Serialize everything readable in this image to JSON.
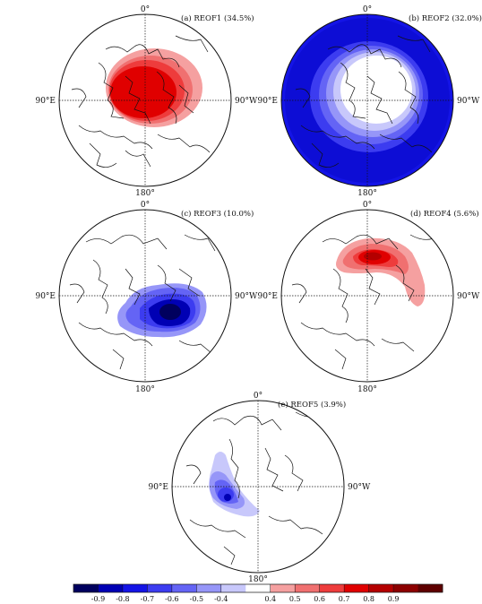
{
  "figure": {
    "panels": [
      {
        "id": "a",
        "title": "(a) REOF1 (34.5%)",
        "top_label": "0°",
        "bottom_label": "180°",
        "left_label": "90°E",
        "right_label": "90°W"
      },
      {
        "id": "b",
        "title": "(b) REOF2 (32.0%)",
        "top_label": "0°",
        "bottom_label": "180°",
        "left_label": "90°E",
        "right_label": "90°W"
      },
      {
        "id": "c",
        "title": "(c) REOF3 (10.0%)",
        "top_label": "0°",
        "bottom_label": "180°",
        "left_label": "90°E",
        "right_label": "90°W"
      },
      {
        "id": "d",
        "title": "(d) REOF4 (5.6%)",
        "top_label": "0°",
        "bottom_label": "180°",
        "left_label": "90°E",
        "right_label": "90°W"
      },
      {
        "id": "e",
        "title": "(e) REOF5 (3.9%)",
        "top_label": "0°",
        "bottom_label": "180°",
        "left_label": "90°E",
        "right_label": "90°W"
      }
    ],
    "colorbar": {
      "tick_labels": [
        "-0.9",
        "-0.8",
        "-0.7",
        "-0.6",
        "-0.5",
        "-0.4",
        "0.4",
        "0.5",
        "0.6",
        "0.7",
        "0.8",
        "0.9"
      ],
      "colors": [
        "#00005e",
        "#0000b4",
        "#1414e6",
        "#3c3cf0",
        "#6464f5",
        "#9696f8",
        "#c8c8fb",
        "#ffffff",
        "#f5a0a0",
        "#f07070",
        "#ee3c3c",
        "#e00000",
        "#b40000",
        "#8c0000",
        "#5e0000"
      ]
    }
  }
}
